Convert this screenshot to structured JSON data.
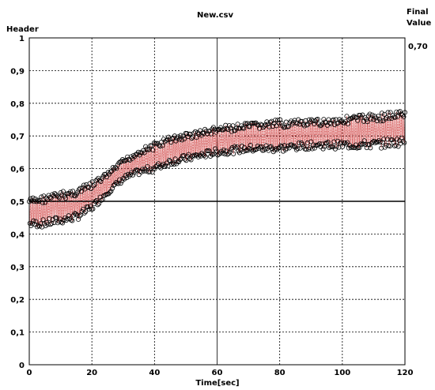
{
  "chart_data": {
    "type": "scatter",
    "title": "New.csv",
    "ylabel": "Header",
    "xlabel": "Time[sec]",
    "right_header": [
      "Final",
      "Value"
    ],
    "final_value": "0,70",
    "xlim": [
      0,
      120
    ],
    "ylim": [
      0,
      1
    ],
    "x_ticks": [
      0,
      20,
      40,
      60,
      80,
      100,
      120
    ],
    "y_ticks": [
      "0",
      "0,1",
      "0,2",
      "0,3",
      "0,4",
      "0,5",
      "0,6",
      "0,7",
      "0,8",
      "0,9",
      "1"
    ],
    "grid": true,
    "reference_line_y": 0.5,
    "marker_color": "#000000",
    "line_color": "#cc3333",
    "envelope": {
      "x": [
        0,
        5,
        10,
        15,
        20,
        25,
        30,
        35,
        40,
        45,
        50,
        55,
        60,
        70,
        80,
        90,
        100,
        110,
        120
      ],
      "low": [
        0.42,
        0.42,
        0.43,
        0.44,
        0.47,
        0.52,
        0.56,
        0.58,
        0.59,
        0.61,
        0.62,
        0.63,
        0.64,
        0.65,
        0.65,
        0.66,
        0.66,
        0.66,
        0.67
      ],
      "high": [
        0.51,
        0.52,
        0.53,
        0.54,
        0.56,
        0.59,
        0.63,
        0.66,
        0.68,
        0.7,
        0.71,
        0.72,
        0.73,
        0.74,
        0.75,
        0.75,
        0.76,
        0.77,
        0.78
      ]
    }
  }
}
